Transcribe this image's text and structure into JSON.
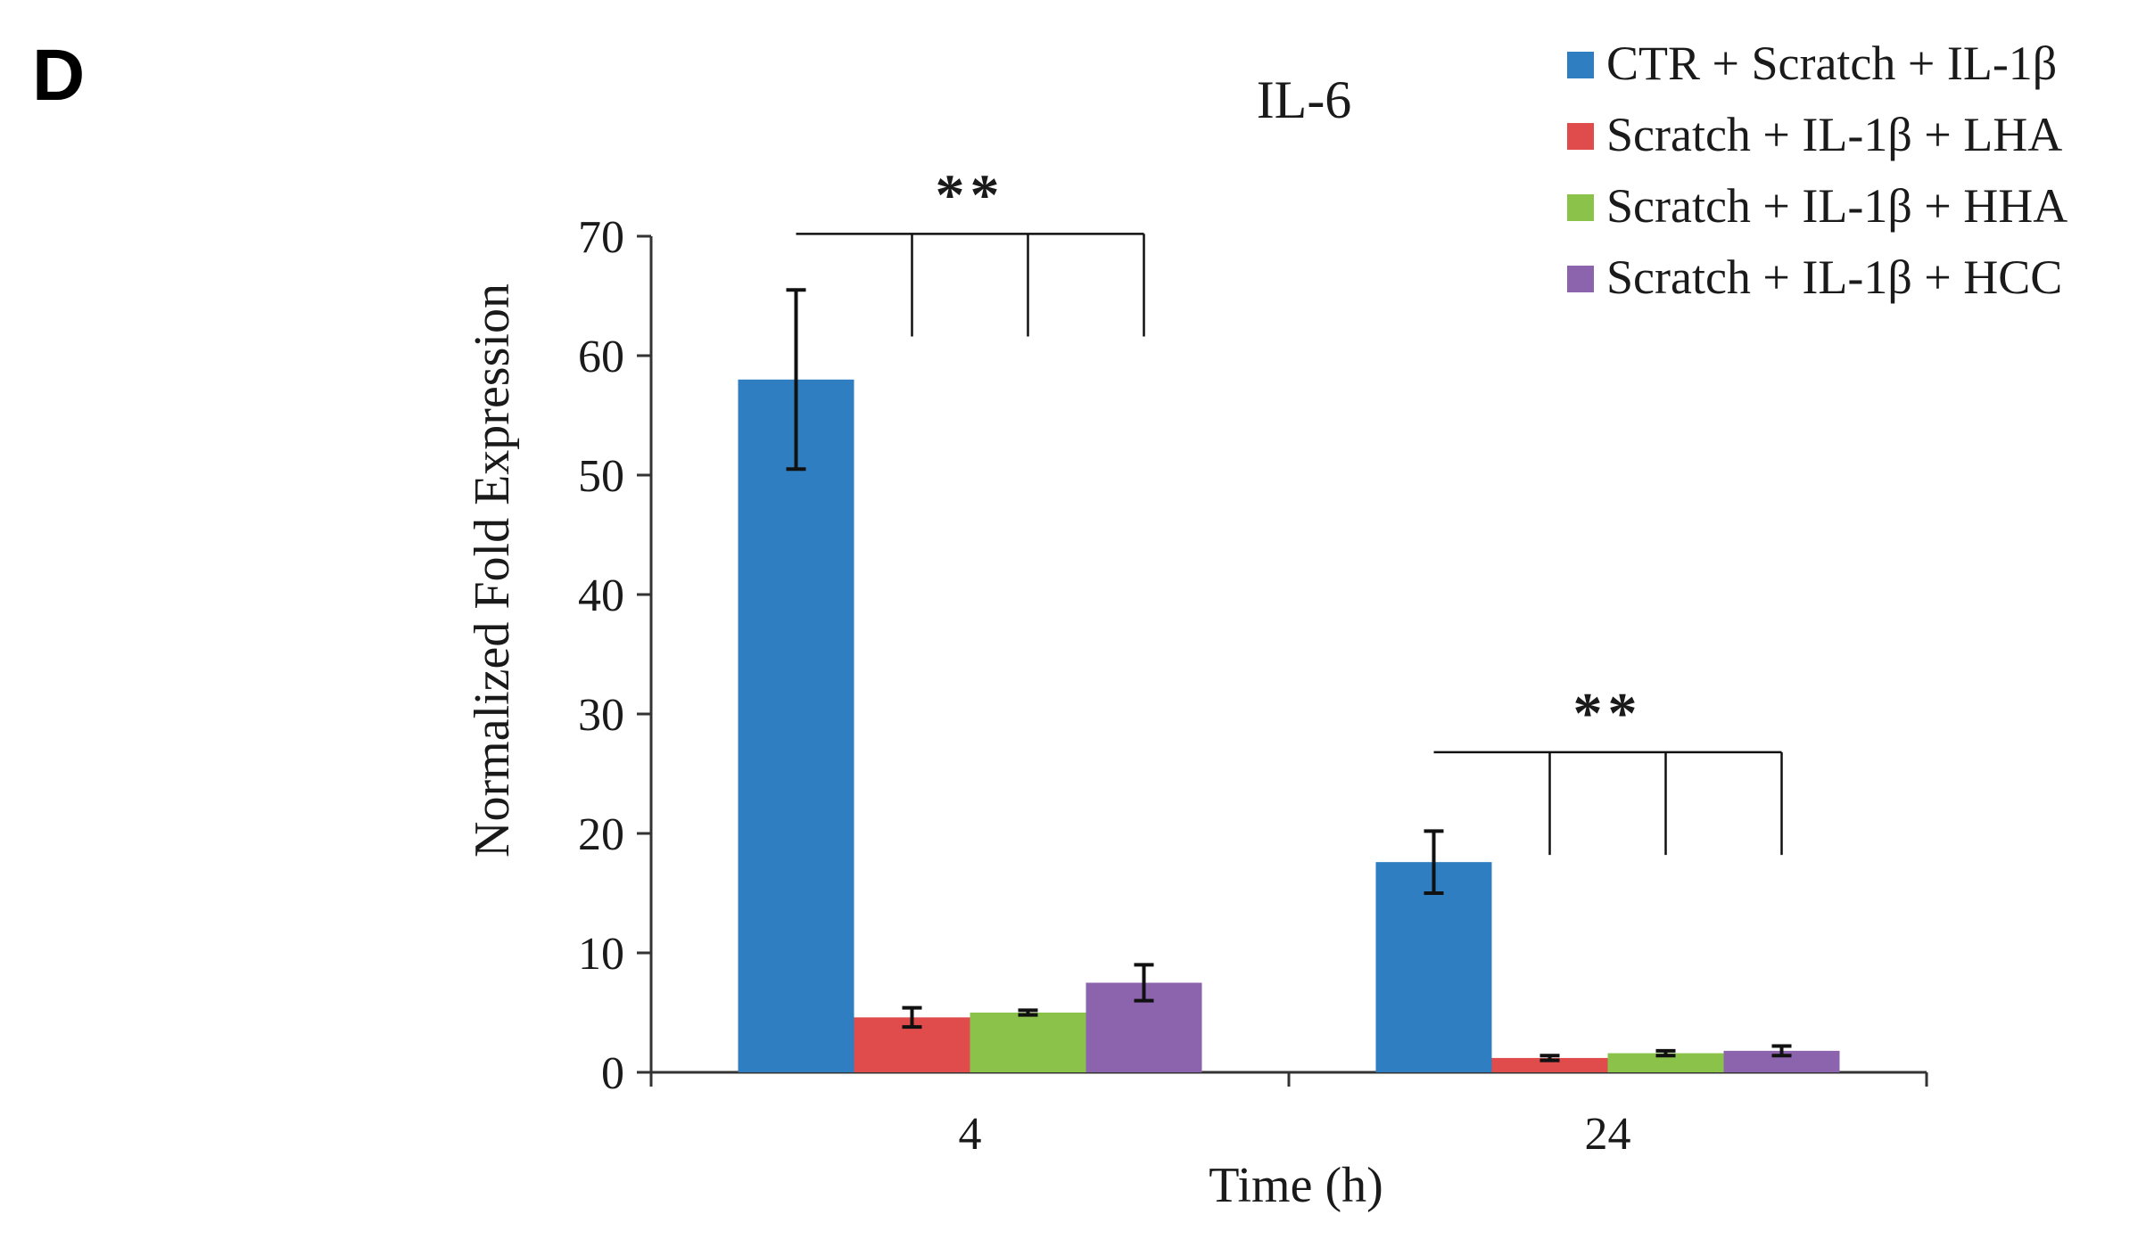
{
  "panel_label": "D",
  "chart_data": {
    "type": "bar",
    "title": "IL-6",
    "xlabel": "Time (h)",
    "ylabel": "Normalized Fold Expression",
    "categories": [
      "4",
      "24"
    ],
    "ylim": [
      0,
      70
    ],
    "yticks": [
      0,
      10,
      20,
      30,
      40,
      50,
      60,
      70
    ],
    "grid": false,
    "legend_position": "top-right",
    "series": [
      {
        "name": "CTR + Scratch + IL-1β",
        "color": "#2e7ec1",
        "values": [
          58,
          17.6
        ],
        "errors": [
          7.5,
          2.6
        ]
      },
      {
        "name": "Scratch + IL-1β + LHA",
        "color": "#e04b4b",
        "values": [
          4.6,
          1.2
        ],
        "errors": [
          0.8,
          0.2
        ]
      },
      {
        "name": "Scratch + IL-1β + HHA",
        "color": "#8bc34a",
        "values": [
          5.0,
          1.6
        ],
        "errors": [
          0.2,
          0.2
        ]
      },
      {
        "name": "Scratch + IL-1β + HCC",
        "color": "#8c64ad",
        "values": [
          7.5,
          1.8
        ],
        "errors": [
          1.5,
          0.4
        ]
      }
    ],
    "annotations": [
      {
        "label": "**",
        "category": "4",
        "bracket_y": 70.2,
        "drop_y": 61.6
      },
      {
        "label": "**",
        "category": "24",
        "bracket_y": 26.8,
        "drop_y": 18.2
      }
    ]
  }
}
